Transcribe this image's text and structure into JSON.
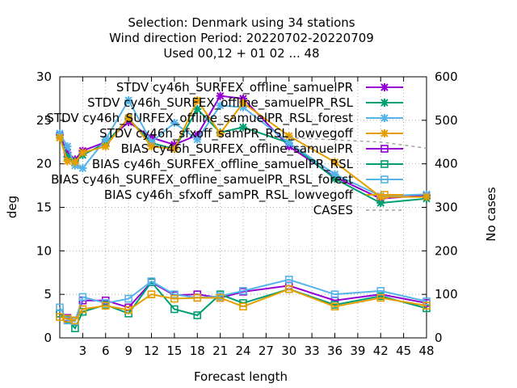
{
  "title_lines": [
    "Selection: Denmark using    34 stations",
    "Wind direction   Period: 20220702-20220709",
    "Used  00,12  + 01 02 ... 48"
  ],
  "chart_data": {
    "type": "line",
    "xlabel": "Forecast length",
    "ylabel": "deg",
    "y2label": "No cases",
    "xlim": [
      0,
      48
    ],
    "ylim": [
      0,
      30
    ],
    "y2lim": [
      0,
      600
    ],
    "xticks": [
      3,
      6,
      9,
      12,
      15,
      18,
      21,
      24,
      27,
      30,
      33,
      36,
      39,
      42,
      45,
      48
    ],
    "yticks": [
      0,
      5,
      10,
      15,
      20,
      25,
      30
    ],
    "y2ticks": [
      0,
      100,
      200,
      300,
      400,
      500,
      600
    ],
    "grid": true,
    "legend_position": "top-right",
    "x": [
      0,
      1,
      2,
      3,
      6,
      9,
      12,
      15,
      18,
      21,
      24,
      30,
      36,
      42,
      48
    ],
    "series": [
      {
        "name": "STDV cy46h_SURFEX_offline_samuelPR",
        "color": "#9400d3",
        "marker": "x",
        "axis": "y",
        "values": [
          23.3,
          21.3,
          20.5,
          21.5,
          22.5,
          24.8,
          23.0,
          22.2,
          23.3,
          27.8,
          27.5,
          22.0,
          18.5,
          16.0,
          16.4
        ]
      },
      {
        "name": "STDV cy46h_SURFEX_offline_samuelPR_RSL",
        "color": "#009e73",
        "marker": "x",
        "axis": "y",
        "values": [
          23.0,
          20.8,
          20.3,
          21.0,
          22.4,
          25.2,
          22.4,
          21.7,
          26.3,
          23.6,
          24.2,
          22.4,
          18.3,
          15.5,
          16.0
        ]
      },
      {
        "name": "STDV cy46h_SURFEX_offline_samuelPR_RSL_forest",
        "color": "#56b4e9",
        "marker": "x",
        "axis": "y",
        "values": [
          23.5,
          22.0,
          19.8,
          19.5,
          22.8,
          27.3,
          22.5,
          24.7,
          22.8,
          26.7,
          26.5,
          22.4,
          18.8,
          16.3,
          16.5
        ]
      },
      {
        "name": "STDV cy46h_sfxoff_samPR_RSL_lowvegoff",
        "color": "#e69f00",
        "marker": "x",
        "axis": "y",
        "values": [
          23.0,
          20.3,
          20.2,
          21.3,
          22.0,
          25.3,
          22.0,
          21.7,
          27.3,
          23.5,
          27.0,
          23.2,
          20.2,
          16.2,
          16.2
        ]
      },
      {
        "name": "BIAS cy46h_SURFEX_offline_samuelPR",
        "color": "#9400d3",
        "marker": "square",
        "axis": "y",
        "values": [
          2.8,
          2.3,
          2.0,
          4.3,
          4.3,
          3.5,
          6.4,
          4.9,
          5.0,
          4.6,
          5.3,
          6.0,
          4.3,
          5.0,
          4.0
        ]
      },
      {
        "name": "BIAS cy46h_SURFEX_offline_samuelPR_RSL",
        "color": "#009e73",
        "marker": "square",
        "axis": "y",
        "values": [
          2.8,
          2.1,
          1.1,
          3.0,
          3.8,
          2.8,
          6.4,
          3.3,
          2.6,
          5.0,
          4.0,
          5.6,
          3.8,
          4.8,
          3.4
        ]
      },
      {
        "name": "BIAS cy46h_SURFEX_offline_samuelPR_RSL_forest",
        "color": "#56b4e9",
        "marker": "square",
        "axis": "y",
        "values": [
          3.5,
          2.0,
          1.9,
          4.7,
          4.0,
          4.5,
          6.5,
          5.0,
          4.6,
          4.8,
          5.4,
          6.7,
          5.0,
          5.4,
          4.2
        ]
      },
      {
        "name": "BIAS cy46h_sfxoff_samPR_RSL_lowvegoff",
        "color": "#e69f00",
        "marker": "square",
        "axis": "y",
        "values": [
          2.4,
          2.2,
          2.0,
          3.3,
          3.7,
          3.2,
          5.0,
          4.5,
          4.6,
          4.6,
          3.6,
          5.6,
          3.6,
          4.6,
          3.7
        ]
      },
      {
        "name": "CASES",
        "color": "#a0a0a0",
        "marker": "none",
        "dashed": true,
        "axis": "y2",
        "values": [
          null,
          null,
          null,
          null,
          null,
          null,
          null,
          null,
          null,
          null,
          null,
          460,
          455,
          450,
          436
        ]
      }
    ]
  }
}
